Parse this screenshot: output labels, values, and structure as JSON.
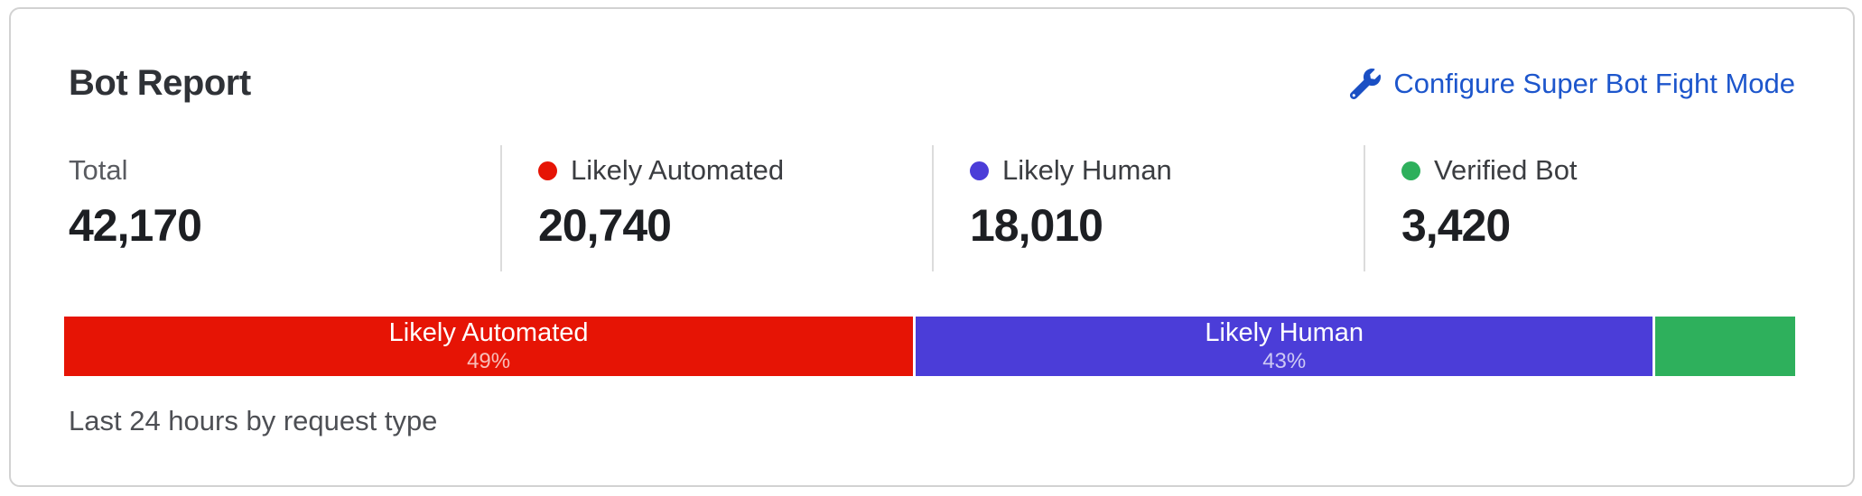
{
  "card": {
    "title": "Bot Report",
    "action_link": {
      "label": "Configure Super Bot Fight Mode",
      "icon": "wrench-icon",
      "color": "#1d56cc"
    },
    "caption": "Last 24 hours by request type"
  },
  "stats": [
    {
      "label": "Total",
      "value": "42,170",
      "dot_color": null
    },
    {
      "label": "Likely Automated",
      "value": "20,740",
      "dot_color": "#e61405"
    },
    {
      "label": "Likely Human",
      "value": "18,010",
      "dot_color": "#4b3dd8"
    },
    {
      "label": "Verified Bot",
      "value": "3,420",
      "dot_color": "#2eb05c"
    }
  ],
  "chart_data": {
    "type": "bar",
    "subtype": "horizontal-stacked-100pct",
    "title": "Bot Report",
    "caption": "Last 24 hours by request type",
    "total": 42170,
    "legend_position": "top",
    "segments": [
      {
        "label": "Likely Automated",
        "value": 20740,
        "pct": 49.2,
        "pct_label": "49%",
        "color": "#e61405",
        "show_label": true
      },
      {
        "label": "Likely Human",
        "value": 18010,
        "pct": 42.7,
        "pct_label": "43%",
        "color": "#4b3dd8",
        "show_label": true
      },
      {
        "label": "Verified Bot",
        "value": 3420,
        "pct": 8.1,
        "pct_label": "",
        "color": "#2eb05c",
        "show_label": false
      }
    ]
  }
}
